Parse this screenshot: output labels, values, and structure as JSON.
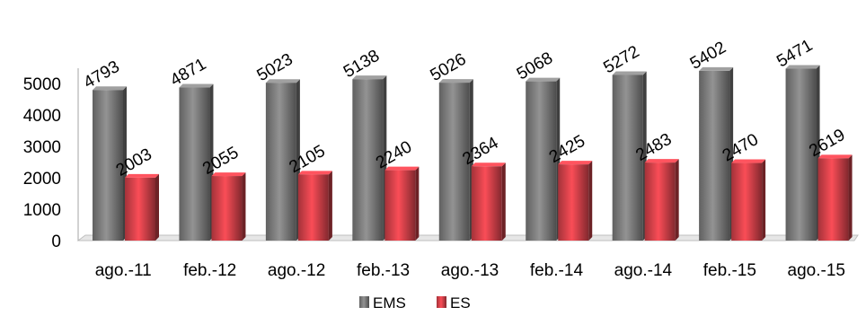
{
  "chart_data": {
    "type": "bar",
    "categories": [
      "ago.-11",
      "feb.-12",
      "ago.-12",
      "feb.-13",
      "ago.-13",
      "feb.-14",
      "ago.-14",
      "feb.-15",
      "ago.-15"
    ],
    "series": [
      {
        "name": "EMS",
        "values": [
          4793,
          4871,
          5023,
          5138,
          5026,
          5068,
          5272,
          5402,
          5471
        ],
        "color": "#808080"
      },
      {
        "name": "ES",
        "values": [
          2003,
          2055,
          2105,
          2240,
          2364,
          2425,
          2483,
          2470,
          2619
        ],
        "color": "#d9434c"
      }
    ],
    "yticks": [
      0,
      1000,
      2000,
      3000,
      4000,
      5000
    ],
    "ylim": [
      0,
      6000
    ],
    "grid": false,
    "legend_position": "bottom",
    "data_labels": "rotated"
  }
}
